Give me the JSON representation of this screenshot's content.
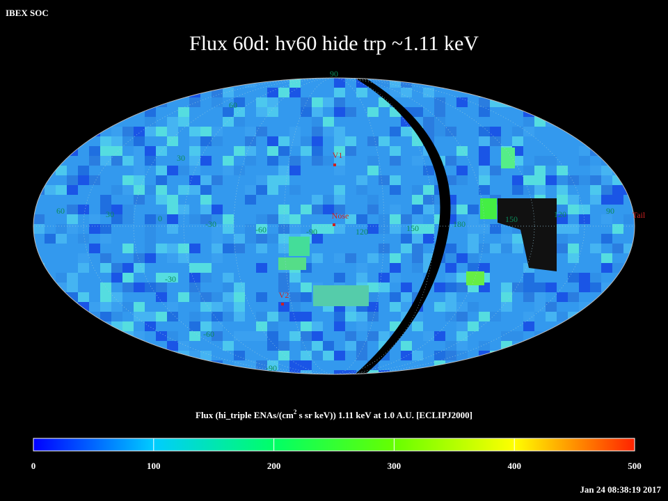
{
  "header": {
    "org": "IBEX SOC",
    "title": "Flux   60d: hv60 hide trp ~1.11 keV"
  },
  "map": {
    "grid_labels": [
      "90",
      "60",
      "30",
      "60",
      "30",
      "0",
      "-30",
      "-60",
      "-90",
      "120",
      "150",
      "180",
      "150",
      "120",
      "90",
      "-30",
      "-60",
      "-90"
    ],
    "markers": [
      "V1",
      "Nose",
      "V2",
      "Tail"
    ]
  },
  "colorbar": {
    "title_parts": [
      "Flux (hi_triple ENAs/(cm",
      "2",
      " s sr keV))  1.11 keV at 1.0 A.U. [ECLIPJ2000]"
    ],
    "lim": [
      0,
      500
    ],
    "ticks": [
      0,
      100,
      200,
      300,
      400,
      500
    ]
  },
  "footer": {
    "timestamp": "Jan 24 08:38:19 2017"
  }
}
